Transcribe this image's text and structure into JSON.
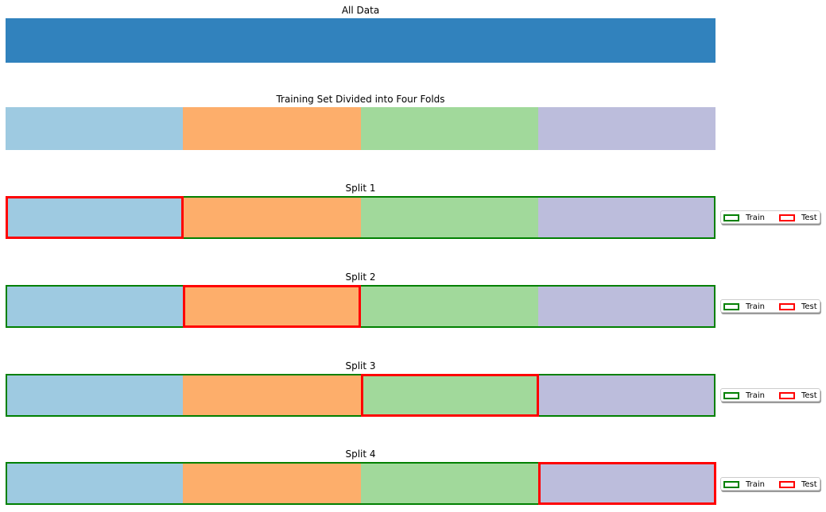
{
  "all_data": {
    "title": "All Data",
    "color": "#3182bd"
  },
  "folds": {
    "title": "Training Set Divided into Four Folds",
    "colors": [
      "#9ecae1",
      "#fdae6b",
      "#a1d99b",
      "#bcbddc"
    ]
  },
  "splits": [
    {
      "title": "Split 1",
      "test_fold": 1
    },
    {
      "title": "Split 2",
      "test_fold": 2
    },
    {
      "title": "Split 3",
      "test_fold": 3
    },
    {
      "title": "Split 4",
      "test_fold": 4
    }
  ],
  "legend": {
    "train_label": "Train",
    "test_label": "Test",
    "train_color": "#008000",
    "test_color": "#ff0000"
  }
}
